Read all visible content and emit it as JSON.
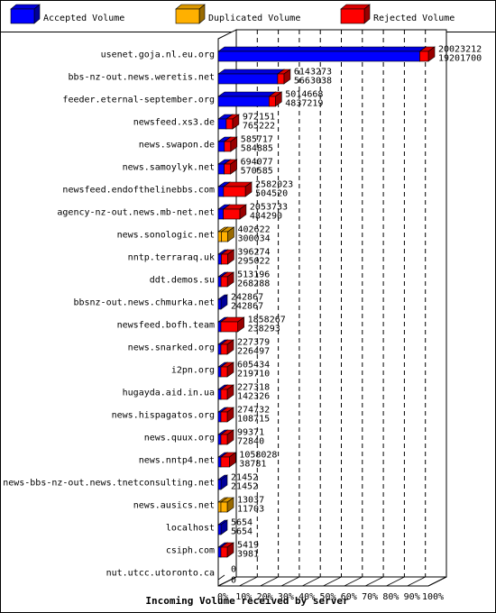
{
  "legend": [
    {
      "label": "Accepted Volume",
      "color": "#0000ff"
    },
    {
      "label": "Duplicated Volume",
      "color": "#ffb000"
    },
    {
      "label": "Rejected Volume",
      "color": "#ff0000"
    }
  ],
  "chart_data": {
    "type": "bar",
    "orientation": "horizontal",
    "title": "",
    "xlabel": "Incoming Volume received by server",
    "ylabel": "",
    "xlim": [
      0,
      100
    ],
    "x_ticks": [
      "0%",
      "10%",
      "20%",
      "30%",
      "40%",
      "50%",
      "60%",
      "70%",
      "80%",
      "90%",
      "100%"
    ],
    "grid": true,
    "legend_position": "top",
    "max_value": 20023212,
    "rows": [
      {
        "server": "usenet.goja.nl.eu.org",
        "total": 20023212,
        "accepted": 19201700,
        "bar": "#0000ff",
        "tip": "#ff0000"
      },
      {
        "server": "bbs-nz-out.news.weretis.net",
        "total": 6143273,
        "accepted": 5663038,
        "bar": "#0000ff",
        "tip": "#ff0000"
      },
      {
        "server": "feeder.eternal-september.org",
        "total": 5014668,
        "accepted": 4837219,
        "bar": "#0000ff",
        "tip": "#ff0000"
      },
      {
        "server": "newsfeed.xs3.de",
        "total": 972151,
        "accepted": 765222,
        "bar": "#0000ff",
        "tip": "#ff0000"
      },
      {
        "server": "news.swapon.de",
        "total": 585717,
        "accepted": 584885,
        "bar": "#0000ff",
        "tip": "#ff0000"
      },
      {
        "server": "news.samoylyk.net",
        "total": 694077,
        "accepted": 570585,
        "bar": "#0000ff",
        "tip": "#ff0000"
      },
      {
        "server": "newsfeed.endofthelinebbs.com",
        "total": 2582023,
        "accepted": 504520,
        "bar": "#0000ff",
        "tip": "#ff0000"
      },
      {
        "server": "agency-nz-out.news.mb-net.net",
        "total": 2053733,
        "accepted": 484290,
        "bar": "#0000ff",
        "tip": "#ff0000"
      },
      {
        "server": "news.sonologic.net",
        "total": 402622,
        "accepted": 300034,
        "bar": "#ffb000",
        "tip": "#ffb000"
      },
      {
        "server": "nntp.terraraq.uk",
        "total": 396274,
        "accepted": 295022,
        "bar": "#0000ff",
        "tip": "#ff0000"
      },
      {
        "server": "ddt.demos.su",
        "total": 513196,
        "accepted": 268288,
        "bar": "#0000ff",
        "tip": "#ff0000"
      },
      {
        "server": "bbsnz-out.news.chmurka.net",
        "total": 242867,
        "accepted": 242867,
        "bar": "#0000ff",
        "tip": "#0000ff"
      },
      {
        "server": "newsfeed.bofh.team",
        "total": 1858267,
        "accepted": 238293,
        "bar": "#0000ff",
        "tip": "#ff0000"
      },
      {
        "server": "news.snarked.org",
        "total": 227379,
        "accepted": 226497,
        "bar": "#0000ff",
        "tip": "#ff0000"
      },
      {
        "server": "i2pn.org",
        "total": 605434,
        "accepted": 219710,
        "bar": "#0000ff",
        "tip": "#ff0000"
      },
      {
        "server": "hugayda.aid.in.ua",
        "total": 227318,
        "accepted": 142326,
        "bar": "#0000ff",
        "tip": "#ff0000"
      },
      {
        "server": "news.hispagatos.org",
        "total": 274732,
        "accepted": 108715,
        "bar": "#0000ff",
        "tip": "#ff0000"
      },
      {
        "server": "news.quux.org",
        "total": 99371,
        "accepted": 72840,
        "bar": "#0000ff",
        "tip": "#ff0000"
      },
      {
        "server": "news.nntp4.net",
        "total": 1058028,
        "accepted": 38781,
        "bar": "#0000ff",
        "tip": "#ff0000"
      },
      {
        "server": "news-bbs-nz-out.news.tnetconsulting.net",
        "total": 21452,
        "accepted": 21452,
        "bar": "#0000ff",
        "tip": "#0000ff"
      },
      {
        "server": "news.ausics.net",
        "total": 13037,
        "accepted": 11703,
        "bar": "#ffb000",
        "tip": "#ffb000"
      },
      {
        "server": "localhost",
        "total": 5654,
        "accepted": 5654,
        "bar": "#0000ff",
        "tip": "#0000ff"
      },
      {
        "server": "csiph.com",
        "total": 5419,
        "accepted": 3981,
        "bar": "#0000ff",
        "tip": "#ff0000"
      },
      {
        "server": "nut.utcc.utoronto.ca",
        "total": 0,
        "accepted": 0,
        "bar": "#0000ff",
        "tip": "#ff0000"
      }
    ]
  }
}
